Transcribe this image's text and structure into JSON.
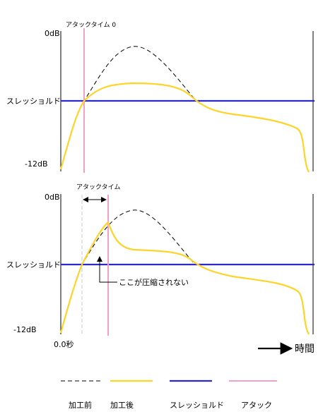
{
  "colors": {
    "before": "#000000",
    "after": "#ffd42a",
    "threshold": "#2a2acc",
    "attack": "#f3a0c8",
    "attack_marker": "#c8c8c8"
  },
  "top_panel": {
    "attack_label": "アタックタイム 0",
    "y_top": "0dB",
    "y_threshold": "スレッショルド",
    "y_bottom": "-12dB"
  },
  "bottom_panel": {
    "attack_label": "アタックタイム",
    "y_top": "0dB",
    "y_threshold": "スレッショルド",
    "y_bottom": "-12dB",
    "x_origin": "0.0秒",
    "annotation": "ここが圧縮されない"
  },
  "time_axis": {
    "label": "時間"
  },
  "legend": {
    "before": "加工前",
    "after": "加工後",
    "threshold": "スレッショルド",
    "attack": "アタック"
  }
}
